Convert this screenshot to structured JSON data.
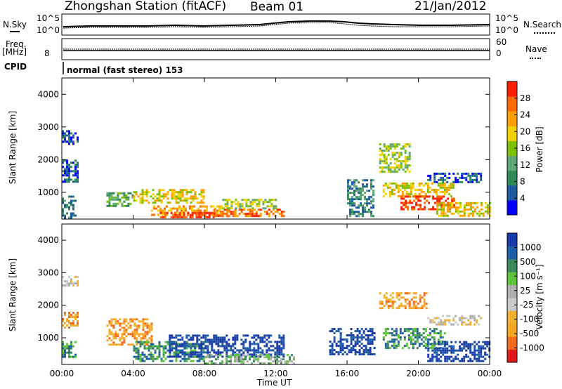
{
  "header": {
    "station": "Zhongshan Station (fitACF)",
    "beam": "Beam 01",
    "date": "21/Jan/2012"
  },
  "panels": {
    "nsky": {
      "label": "N.Sky",
      "ticks": [
        "10^5",
        "10^0"
      ]
    },
    "nsearch": {
      "label": "N.Search",
      "ticks": [
        "10^5",
        "10^0"
      ]
    },
    "freq": {
      "label": "Freq.",
      "unit": "[MHz]",
      "ticks": [
        "8"
      ]
    },
    "nave": {
      "label": "Nave",
      "ticks": [
        "60",
        "0"
      ]
    },
    "cpid": {
      "label": "CPID",
      "value": "normal (fast stereo) 153"
    }
  },
  "chart_data": [
    {
      "type": "heatmap",
      "title": "",
      "xlabel": "",
      "ylabel": "Slant Range [km]",
      "xlim": [
        0,
        24
      ],
      "ylim": [
        180,
        4500
      ],
      "yticks": [
        "4000",
        "3000",
        "2000",
        "1000"
      ],
      "colorbar": {
        "label": "Power [dB]",
        "ticks": [
          "28",
          "24",
          "20",
          "16",
          "12",
          "8",
          "4"
        ],
        "colors": [
          "#0000ff",
          "#1e5aa0",
          "#2e8b57",
          "#5fa876",
          "#7cc000",
          "#f0d200",
          "#ff9f00",
          "#ff6a00",
          "#ff2000"
        ]
      },
      "regions": [
        {
          "t": [
            0.0,
            0.9
          ],
          "r": [
            2500,
            2900
          ],
          "level": 1
        },
        {
          "t": [
            0.0,
            0.9
          ],
          "r": [
            1300,
            2000
          ],
          "level": 1
        },
        {
          "t": [
            0.0,
            0.8
          ],
          "r": [
            200,
            900
          ],
          "level": 2
        },
        {
          "t": [
            2.5,
            4.0
          ],
          "r": [
            600,
            1000
          ],
          "level": 3
        },
        {
          "t": [
            4.0,
            8.0
          ],
          "r": [
            700,
            1100
          ],
          "level": 5
        },
        {
          "t": [
            5.0,
            9.0
          ],
          "r": [
            300,
            600
          ],
          "level": 6
        },
        {
          "t": [
            5.5,
            8.5
          ],
          "r": [
            250,
            400
          ],
          "level": 8
        },
        {
          "t": [
            8.5,
            12.5
          ],
          "r": [
            250,
            500
          ],
          "level": 7
        },
        {
          "t": [
            9.0,
            12.0
          ],
          "r": [
            500,
            800
          ],
          "level": 4
        },
        {
          "t": [
            16.0,
            17.5
          ],
          "r": [
            300,
            1400
          ],
          "level": 2
        },
        {
          "t": [
            17.8,
            19.5
          ],
          "r": [
            1600,
            2500
          ],
          "level": 4
        },
        {
          "t": [
            18.0,
            22.0
          ],
          "r": [
            900,
            1300
          ],
          "level": 5
        },
        {
          "t": [
            19.0,
            22.0
          ],
          "r": [
            500,
            900
          ],
          "level": 8
        },
        {
          "t": [
            21.0,
            24.0
          ],
          "r": [
            300,
            700
          ],
          "level": 5
        },
        {
          "t": [
            20.5,
            23.5
          ],
          "r": [
            1300,
            1600
          ],
          "level": 1
        }
      ]
    },
    {
      "type": "heatmap",
      "title": "",
      "xlabel": "Time UT",
      "ylabel": "Slant Range [km]",
      "xlim": [
        0,
        24
      ],
      "ylim": [
        180,
        4500
      ],
      "xticks": [
        "00:00",
        "04:00",
        "08:00",
        "12:00",
        "16:00",
        "20:00",
        "00:00"
      ],
      "yticks": [
        "4000",
        "3000",
        "2000",
        "1000"
      ],
      "colorbar": {
        "label": "Velocity [m s⁻¹]",
        "ticks": [
          "1000",
          "500",
          "100",
          "25",
          "-25",
          "-100",
          "-500",
          "-1000"
        ],
        "colors": [
          "#e0191b",
          "#f26a1e",
          "#f5a623",
          "#f0b030",
          "#c8c8c8",
          "#b0b0b0",
          "#5ec23a",
          "#3a8a5e",
          "#1f5fa8",
          "#1a3aa8"
        ]
      },
      "regions": [
        {
          "t": [
            0.0,
            0.9
          ],
          "r": [
            2600,
            2900
          ],
          "level": 4
        },
        {
          "t": [
            0.0,
            0.9
          ],
          "r": [
            1300,
            1800
          ],
          "level": 2
        },
        {
          "t": [
            0.0,
            0.8
          ],
          "r": [
            400,
            900
          ],
          "level": 7
        },
        {
          "t": [
            2.5,
            5.0
          ],
          "r": [
            800,
            1600
          ],
          "level": 2
        },
        {
          "t": [
            4.0,
            8.0
          ],
          "r": [
            300,
            900
          ],
          "level": 7
        },
        {
          "t": [
            6.0,
            12.5
          ],
          "r": [
            400,
            1100
          ],
          "level": 9
        },
        {
          "t": [
            8.0,
            13.0
          ],
          "r": [
            200,
            500
          ],
          "level": 6
        },
        {
          "t": [
            15.0,
            17.5
          ],
          "r": [
            500,
            1300
          ],
          "level": 9
        },
        {
          "t": [
            17.8,
            20.5
          ],
          "r": [
            1900,
            2400
          ],
          "level": 2
        },
        {
          "t": [
            18.0,
            21.5
          ],
          "r": [
            700,
            1300
          ],
          "level": 7
        },
        {
          "t": [
            20.5,
            24.0
          ],
          "r": [
            300,
            900
          ],
          "level": 9
        },
        {
          "t": [
            20.5,
            23.5
          ],
          "r": [
            1400,
            1700
          ],
          "level": 4
        }
      ]
    }
  ]
}
